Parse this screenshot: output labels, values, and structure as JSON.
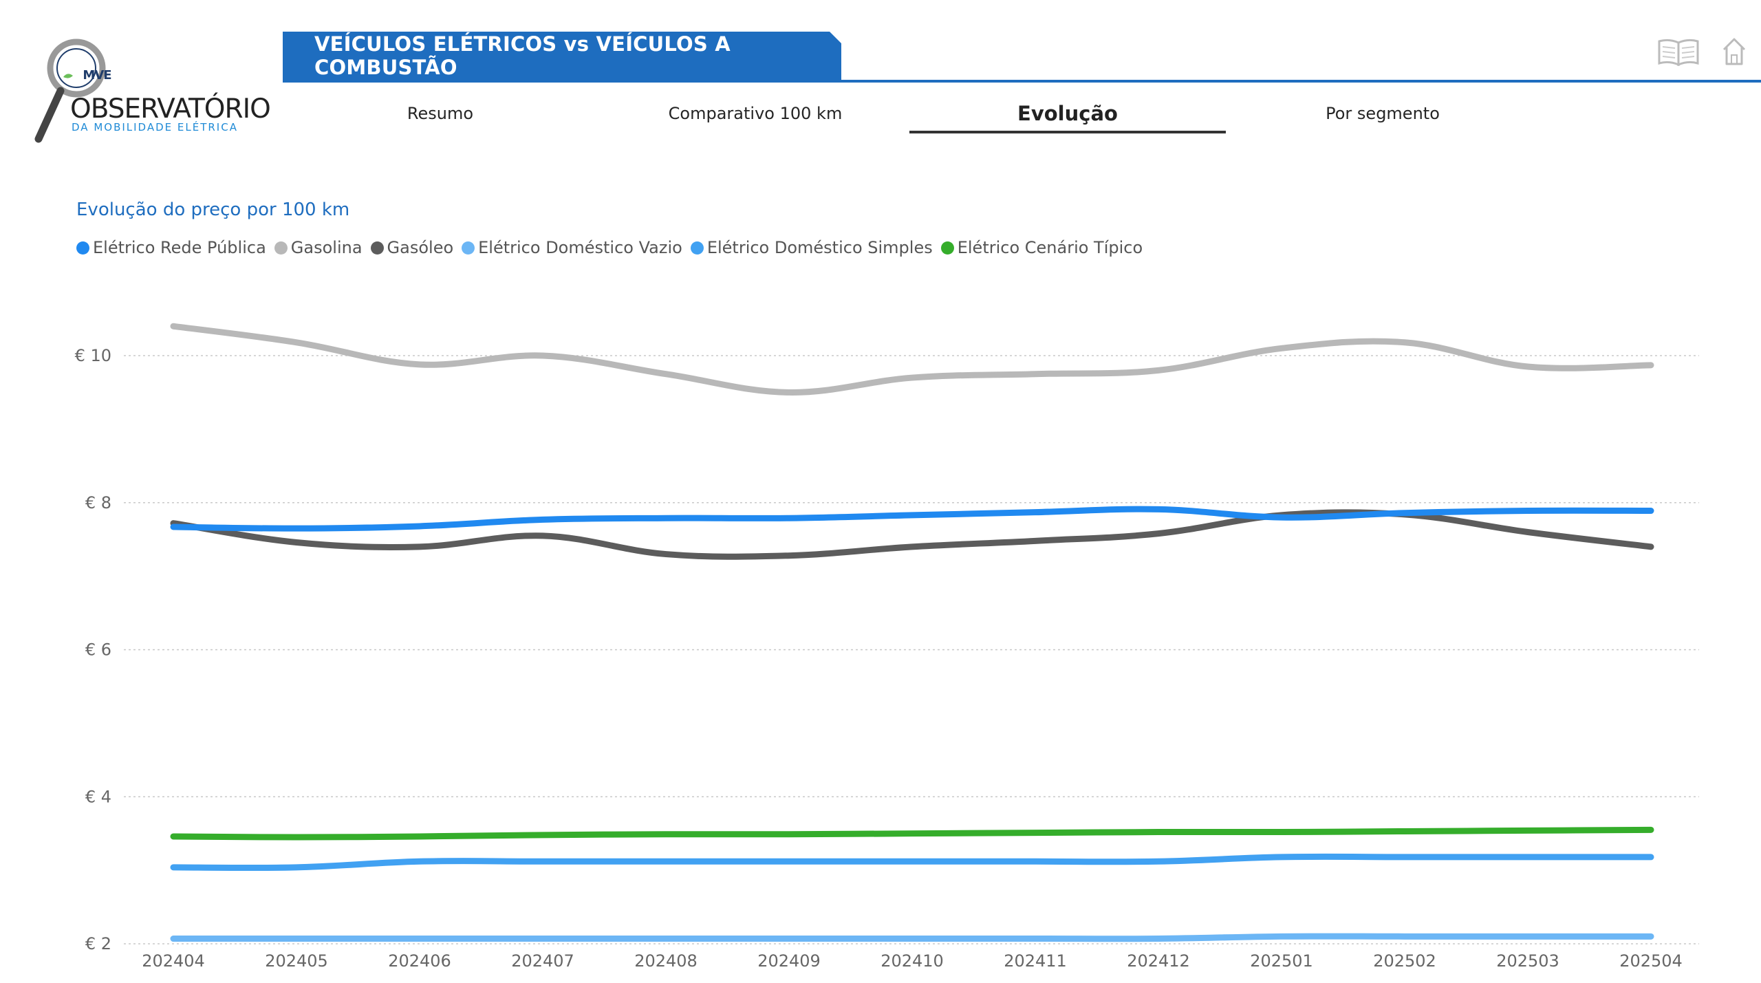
{
  "logo": {
    "badge_text": "MVE",
    "title": "OBSERVATÓRIO",
    "subtitle": "DA MOBILIDADE ELÉTRICA"
  },
  "header": {
    "title": "VEÍCULOS ELÉTRICOS vs VEÍCULOS A COMBUSTÃO",
    "icons": [
      "book-icon",
      "home-icon"
    ]
  },
  "tabs": [
    {
      "label": "Resumo",
      "active": false
    },
    {
      "label": "Comparativo 100 km",
      "active": false
    },
    {
      "label": "Evolução",
      "active": true
    },
    {
      "label": "Por segmento",
      "active": false
    }
  ],
  "colors": {
    "accent": "#1e6dbf",
    "publica": "#2089f0",
    "gasolina": "#b8b8b8",
    "gasoleo": "#5c5c5c",
    "vazio": "#6cb6f5",
    "simples": "#41a1f2",
    "tipico": "#35ad2b"
  },
  "chart_data": {
    "type": "line",
    "title": "Evolução do preço por 100 km",
    "x": [
      "202404",
      "202405",
      "202406",
      "202407",
      "202408",
      "202409",
      "202410",
      "202411",
      "202412",
      "202501",
      "202502",
      "202503",
      "202504"
    ],
    "y_ticks": [
      "€ 2",
      "€ 4",
      "€ 6",
      "€ 8",
      "€ 10"
    ],
    "ylim": [
      2,
      10.7
    ],
    "grid": true,
    "legend_position": "top-left",
    "series": [
      {
        "name": "Elétrico Rede Pública",
        "color": "#2089f0",
        "values": [
          7.67,
          7.65,
          7.68,
          7.77,
          7.79,
          7.79,
          7.83,
          7.87,
          7.91,
          7.8,
          7.86,
          7.89,
          7.89
        ]
      },
      {
        "name": "Gasolina",
        "color": "#b8b8b8",
        "values": [
          10.4,
          10.18,
          9.88,
          10.0,
          9.75,
          9.5,
          9.7,
          9.75,
          9.8,
          10.1,
          10.18,
          9.85,
          9.87
        ]
      },
      {
        "name": "Gasóleo",
        "color": "#5c5c5c",
        "values": [
          7.72,
          7.46,
          7.4,
          7.55,
          7.3,
          7.28,
          7.4,
          7.48,
          7.58,
          7.83,
          7.84,
          7.6,
          7.4
        ]
      },
      {
        "name": "Elétrico Doméstico Vazio",
        "color": "#6cb6f5",
        "values": [
          2.07,
          2.07,
          2.07,
          2.07,
          2.07,
          2.07,
          2.07,
          2.07,
          2.07,
          2.1,
          2.1,
          2.1,
          2.1
        ]
      },
      {
        "name": "Elétrico Doméstico Simples",
        "color": "#41a1f2",
        "values": [
          3.04,
          3.04,
          3.12,
          3.12,
          3.12,
          3.12,
          3.12,
          3.12,
          3.12,
          3.18,
          3.18,
          3.18,
          3.18
        ]
      },
      {
        "name": "Elétrico Cenário Típico",
        "color": "#35ad2b",
        "values": [
          3.46,
          3.45,
          3.46,
          3.48,
          3.49,
          3.49,
          3.5,
          3.51,
          3.52,
          3.52,
          3.53,
          3.54,
          3.55
        ]
      }
    ]
  }
}
